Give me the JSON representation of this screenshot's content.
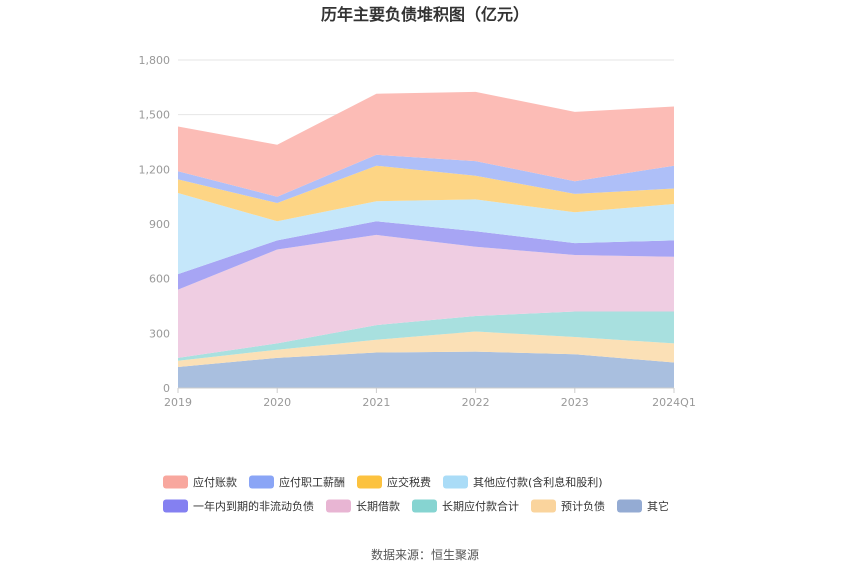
{
  "chart_data": {
    "type": "area",
    "stacked": true,
    "title": "历年主要负债堆积图（亿元）",
    "source": "数据来源：恒生聚源",
    "categories": [
      "2019",
      "2020",
      "2021",
      "2022",
      "2023",
      "2024Q1"
    ],
    "ylim": [
      0,
      1800
    ],
    "yticks": [
      "0",
      "300",
      "600",
      "900",
      "1,200",
      "1,500",
      "1,800"
    ],
    "yticks_values": [
      0,
      300,
      600,
      900,
      1200,
      1500,
      1800
    ],
    "grid": true,
    "legend_position": "bottom",
    "series": [
      {
        "name": "其它",
        "color": "#a9bfdf",
        "values": [
          115,
          165,
          195,
          200,
          185,
          140
        ]
      },
      {
        "name": "预计负债",
        "color": "#fbe0b6",
        "values": [
          35,
          45,
          70,
          110,
          95,
          105
        ]
      },
      {
        "name": "长期应付款合计",
        "color": "#a8e0df",
        "values": [
          15,
          35,
          80,
          85,
          140,
          175
        ]
      },
      {
        "name": "长期借款",
        "color": "#efcde2",
        "values": [
          375,
          515,
          495,
          380,
          310,
          300
        ]
      },
      {
        "name": "一年内到期的非流动负债",
        "color": "#a7a5f4",
        "values": [
          85,
          50,
          75,
          85,
          65,
          90
        ]
      },
      {
        "name": "其他应付款(含利息和股利)",
        "color": "#c5e7fa",
        "values": [
          445,
          105,
          110,
          175,
          170,
          200
        ]
      },
      {
        "name": "应交税费",
        "color": "#fdd585",
        "values": [
          75,
          100,
          195,
          130,
          100,
          85
        ]
      },
      {
        "name": "应付职工薪酬",
        "color": "#aebff8",
        "values": [
          45,
          35,
          60,
          80,
          70,
          125
        ]
      },
      {
        "name": "应付账款",
        "color": "#fcbcb6",
        "values": [
          245,
          285,
          335,
          380,
          380,
          325
        ]
      }
    ]
  },
  "legend": {
    "items": [
      {
        "name": "应付账款",
        "color": "#f8a79e"
      },
      {
        "name": "应付职工薪酬",
        "color": "#8aa5f6"
      },
      {
        "name": "应交税费",
        "color": "#fcc23f"
      },
      {
        "name": "其他应付款(含利息和股利)",
        "color": "#aadcf7"
      },
      {
        "name": "一年内到期的非流动负债",
        "color": "#8480f1"
      },
      {
        "name": "长期借款",
        "color": "#e8b5d3"
      },
      {
        "name": "长期应付款合计",
        "color": "#86d4d1"
      },
      {
        "name": "预计负债",
        "color": "#fad49d"
      },
      {
        "name": "其它",
        "color": "#94abd3"
      }
    ]
  }
}
